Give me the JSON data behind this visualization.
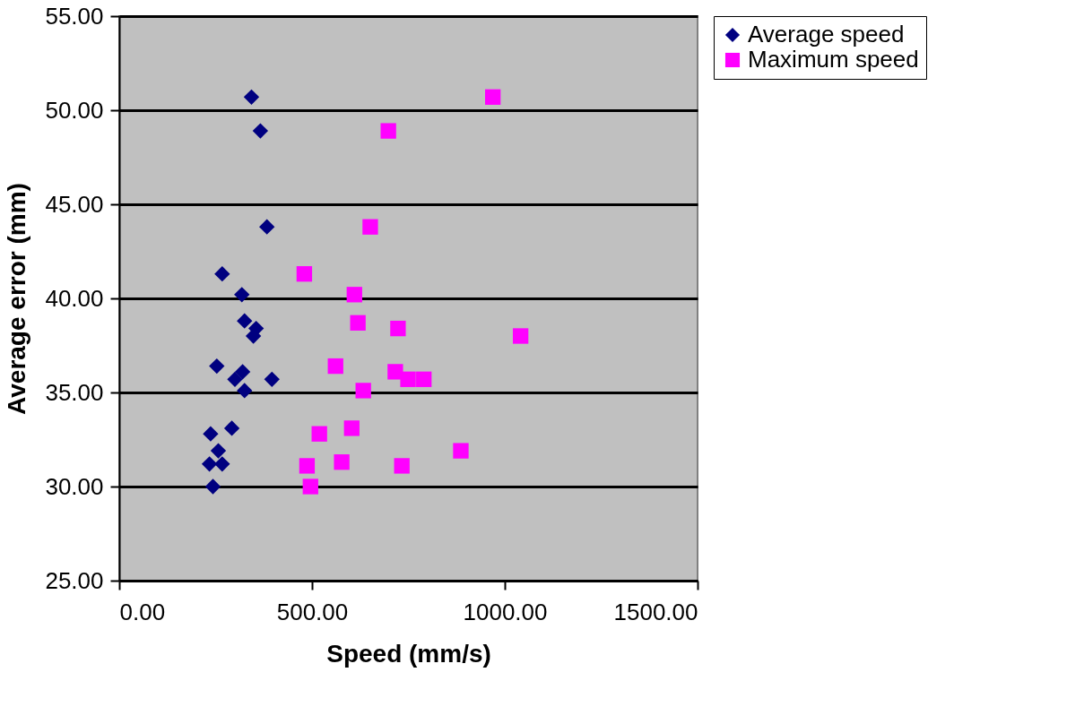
{
  "chart_data": {
    "type": "scatter",
    "xlabel": "Speed (mm/s)",
    "ylabel": "Average error (mm)",
    "xlim": [
      0,
      1500
    ],
    "ylim": [
      25,
      55
    ],
    "xticks": [
      {
        "value": 0,
        "label": "0.00"
      },
      {
        "value": 500,
        "label": "500.00"
      },
      {
        "value": 1000,
        "label": "1000.00"
      },
      {
        "value": 1500,
        "label": "1500.00"
      }
    ],
    "yticks": [
      {
        "value": 25,
        "label": "25.00"
      },
      {
        "value": 30,
        "label": "30.00"
      },
      {
        "value": 35,
        "label": "35.00"
      },
      {
        "value": 40,
        "label": "40.00"
      },
      {
        "value": 45,
        "label": "45.00"
      },
      {
        "value": 50,
        "label": "50.00"
      },
      {
        "value": 55,
        "label": "55.00"
      }
    ],
    "grid": "y",
    "legend": "right",
    "series": [
      {
        "name": "Average speed",
        "color": "#000080",
        "marker": "diamond",
        "x": [
          343,
          366,
          383,
          267,
          318,
          325,
          355,
          348,
          253,
          320,
          396,
          300,
          325,
          292,
          237,
          257,
          234,
          267,
          243
        ],
        "values": [
          50.7,
          48.9,
          43.8,
          41.3,
          40.2,
          38.8,
          38.4,
          38.0,
          36.4,
          36.1,
          35.7,
          35.7,
          35.1,
          33.1,
          32.8,
          31.9,
          31.2,
          31.2,
          30.0
        ]
      },
      {
        "name": "Maximum speed",
        "color": "#ff00ff",
        "marker": "square",
        "x": [
          969,
          698,
          651,
          480,
          610,
          619,
          723,
          1041,
          561,
          716,
          749,
          790,
          633,
          603,
          519,
          886,
          577,
          487,
          733,
          496
        ],
        "values": [
          50.7,
          48.9,
          43.8,
          41.3,
          40.2,
          38.7,
          38.4,
          38.0,
          36.4,
          36.1,
          35.7,
          35.7,
          35.1,
          33.1,
          32.8,
          31.9,
          31.3,
          31.1,
          31.1,
          30.0
        ]
      }
    ]
  }
}
